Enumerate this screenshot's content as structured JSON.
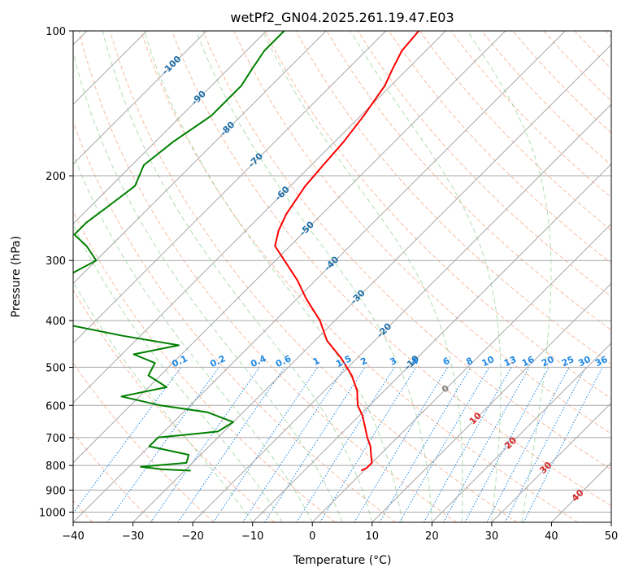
{
  "chart_data": {
    "type": "line",
    "chart_kind": "skew-T log-p",
    "title": "wetPf2_GN04.2025.261.19.47.E03",
    "xlabel": "Temperature (°C)",
    "ylabel": "Pressure (hPa)",
    "xlim": [
      -40,
      50
    ],
    "ylim": [
      1050,
      100
    ],
    "y_scale": "log",
    "grid": true,
    "x_ticks": [
      "−40",
      "−30",
      "−20",
      "−10",
      "0",
      "10",
      "20",
      "30",
      "40",
      "50"
    ],
    "x_tick_values": [
      -40,
      -30,
      -20,
      -10,
      0,
      10,
      20,
      30,
      40,
      50
    ],
    "y_ticks": [
      "100",
      "200",
      "300",
      "400",
      "500",
      "600",
      "700",
      "800",
      "900",
      "1000"
    ],
    "y_tick_values": [
      100,
      200,
      300,
      400,
      500,
      600,
      700,
      800,
      900,
      1000
    ],
    "colors": {
      "temperature": "#ff0000",
      "dewpoint": "#008000",
      "isotherm_grid": "#a8a8a8",
      "dry_adiabat": "#f4a582",
      "moist_adiabat": "#8fcf8f",
      "mixing_ratio": "#1e88e5",
      "isotherm_label_cold": "#1f6fa8",
      "isotherm_label_warm": "#d62728",
      "zero_label": "#808080"
    },
    "isotherm_labels": [
      {
        "text": "-100",
        "p": 118,
        "color": "cold"
      },
      {
        "text": "-90",
        "p": 138,
        "color": "cold"
      },
      {
        "text": "-80",
        "p": 160,
        "color": "cold"
      },
      {
        "text": "-70",
        "p": 186,
        "color": "cold"
      },
      {
        "text": "-60",
        "p": 218,
        "color": "cold"
      },
      {
        "text": "-50",
        "p": 258,
        "color": "cold"
      },
      {
        "text": "-40",
        "p": 305,
        "color": "cold"
      },
      {
        "text": "-30",
        "p": 358,
        "color": "cold"
      },
      {
        "text": "-20",
        "p": 420,
        "color": "cold"
      },
      {
        "text": "-10",
        "p": 490,
        "color": "cold"
      },
      {
        "text": "0",
        "p": 555,
        "color": "zero"
      },
      {
        "text": "10",
        "p": 640,
        "color": "warm"
      },
      {
        "text": "20",
        "p": 720,
        "color": "warm"
      },
      {
        "text": "30",
        "p": 810,
        "color": "warm"
      },
      {
        "text": "40",
        "p": 925,
        "color": "warm"
      }
    ],
    "mixing_ratio_labels": [
      "0.1",
      "0.2",
      "0.4",
      "0.6",
      "1",
      "1.5",
      "2",
      "3",
      "4",
      "6",
      "8",
      "10",
      "13",
      "16",
      "20",
      "25",
      "30",
      "36"
    ],
    "series": [
      {
        "key": "temperature",
        "points": [
          [
            100,
            -64.5
          ],
          [
            110,
            -64.0
          ],
          [
            120,
            -62.5
          ],
          [
            130,
            -61.0
          ],
          [
            150,
            -59.5
          ],
          [
            170,
            -58.5
          ],
          [
            190,
            -58.0
          ],
          [
            210,
            -57.5
          ],
          [
            240,
            -56.0
          ],
          [
            260,
            -54.5
          ],
          [
            280,
            -52.5
          ],
          [
            300,
            -48.5
          ],
          [
            330,
            -43.0
          ],
          [
            360,
            -38.5
          ],
          [
            400,
            -32.5
          ],
          [
            440,
            -28.0
          ],
          [
            480,
            -22.5
          ],
          [
            520,
            -18.0
          ],
          [
            560,
            -14.5
          ],
          [
            600,
            -12.0
          ],
          [
            630,
            -9.5
          ],
          [
            660,
            -7.5
          ],
          [
            700,
            -5.0
          ],
          [
            730,
            -3.0
          ],
          [
            760,
            -1.5
          ],
          [
            790,
            0.0
          ],
          [
            810,
            0.0
          ],
          [
            820,
            -0.5
          ]
        ]
      },
      {
        "key": "dewpoint",
        "points": [
          [
            100,
            -87
          ],
          [
            110,
            -87
          ],
          [
            120,
            -86
          ],
          [
            130,
            -85
          ],
          [
            150,
            -85
          ],
          [
            170,
            -87
          ],
          [
            190,
            -88
          ],
          [
            210,
            -86
          ],
          [
            230,
            -87
          ],
          [
            250,
            -88
          ],
          [
            265,
            -88
          ],
          [
            280,
            -84
          ],
          [
            300,
            -80
          ],
          [
            320,
            -82
          ],
          [
            350,
            -84
          ],
          [
            370,
            -84
          ],
          [
            390,
            -79
          ],
          [
            410,
            -73
          ],
          [
            430,
            -63
          ],
          [
            450,
            -52
          ],
          [
            470,
            -58
          ],
          [
            490,
            -53
          ],
          [
            520,
            -52
          ],
          [
            550,
            -47
          ],
          [
            575,
            -53
          ],
          [
            600,
            -45
          ],
          [
            620,
            -36
          ],
          [
            650,
            -30
          ],
          [
            680,
            -31
          ],
          [
            700,
            -40
          ],
          [
            730,
            -40
          ],
          [
            760,
            -32
          ],
          [
            790,
            -31
          ],
          [
            805,
            -38
          ],
          [
            815,
            -34
          ],
          [
            820,
            -29
          ]
        ]
      }
    ]
  }
}
